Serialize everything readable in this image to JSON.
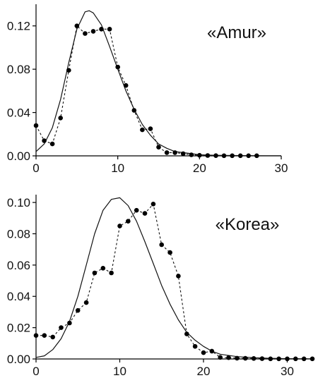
{
  "chart_data": [
    {
      "type": "line",
      "annotation": "«Amur»",
      "xlim": [
        0,
        30
      ],
      "ylim": [
        0,
        0.14
      ],
      "x_ticks": [
        "0",
        "10",
        "20",
        "30"
      ],
      "y_ticks": [
        "0.00",
        "0.04",
        "0.08",
        "0.12"
      ],
      "series": [
        {
          "style": "solid-line",
          "x": [
            0,
            1,
            2,
            3,
            4,
            5,
            6,
            6.5,
            7,
            8,
            9,
            10,
            11,
            12,
            13,
            14,
            15,
            16,
            17,
            18,
            19,
            20,
            22,
            24,
            26,
            28,
            30
          ],
          "y": [
            0.004,
            0.011,
            0.026,
            0.052,
            0.086,
            0.117,
            0.133,
            0.134,
            0.132,
            0.121,
            0.101,
            0.08,
            0.06,
            0.043,
            0.029,
            0.019,
            0.011,
            0.007,
            0.004,
            0.003,
            0.002,
            0.001,
            0.0005,
            0.0003,
            0.0002,
            0.0001,
            0.0001
          ]
        },
        {
          "style": "dashed-markers",
          "x": [
            0,
            1,
            2,
            3,
            4,
            5,
            6,
            7,
            8,
            9,
            10,
            11,
            12,
            13,
            14,
            15,
            16,
            17,
            18,
            19,
            20,
            21,
            22,
            23,
            24,
            25,
            26,
            27
          ],
          "y": [
            0.028,
            0.014,
            0.011,
            0.035,
            0.079,
            0.12,
            0.113,
            0.115,
            0.117,
            0.117,
            0.082,
            0.065,
            0.042,
            0.024,
            0.025,
            0.008,
            0.003,
            0.003,
            0.002,
            0.001,
            0.0005,
            0.0003,
            0.0002,
            0.0001,
            0.0001,
            0.0001,
            0.0001,
            0.0001
          ]
        }
      ]
    },
    {
      "type": "line",
      "annotation": "«Korea»",
      "xlim": [
        0,
        33
      ],
      "ylim": [
        0,
        0.105
      ],
      "x_ticks": [
        "0",
        "10",
        "20",
        "30"
      ],
      "y_ticks": [
        "0.00",
        "0.02",
        "0.04",
        "0.06",
        "0.08",
        "0.10"
      ],
      "series": [
        {
          "style": "solid-line",
          "x": [
            0,
            1,
            2,
            3,
            4,
            5,
            6,
            7,
            8,
            9,
            10,
            11,
            12,
            13,
            14,
            15,
            16,
            17,
            18,
            19,
            20,
            21,
            22,
            24,
            26,
            28,
            30,
            33
          ],
          "y": [
            0.001,
            0.002,
            0.006,
            0.013,
            0.024,
            0.04,
            0.06,
            0.08,
            0.095,
            0.102,
            0.103,
            0.098,
            0.088,
            0.075,
            0.061,
            0.047,
            0.035,
            0.025,
            0.017,
            0.012,
            0.008,
            0.005,
            0.003,
            0.0015,
            0.0008,
            0.0004,
            0.0002,
            0.0001
          ]
        },
        {
          "style": "dashed-markers",
          "x": [
            0,
            1,
            2,
            3,
            4,
            5,
            6,
            7,
            8,
            9,
            10,
            11,
            12,
            13,
            14,
            15,
            16,
            17,
            18,
            19,
            20,
            21,
            22,
            23,
            24,
            25,
            26,
            27,
            28,
            29,
            30,
            31,
            32,
            33
          ],
          "y": [
            0.015,
            0.015,
            0.014,
            0.02,
            0.023,
            0.031,
            0.036,
            0.055,
            0.058,
            0.055,
            0.085,
            0.088,
            0.095,
            0.093,
            0.099,
            0.073,
            0.068,
            0.053,
            0.016,
            0.008,
            0.004,
            0.005,
            0.001,
            0.0008,
            0.0005,
            0.0004,
            0.0003,
            0.0002,
            0.0001,
            0.0001,
            0.0001,
            0.0001,
            0.0001,
            0.0001
          ]
        }
      ]
    }
  ]
}
